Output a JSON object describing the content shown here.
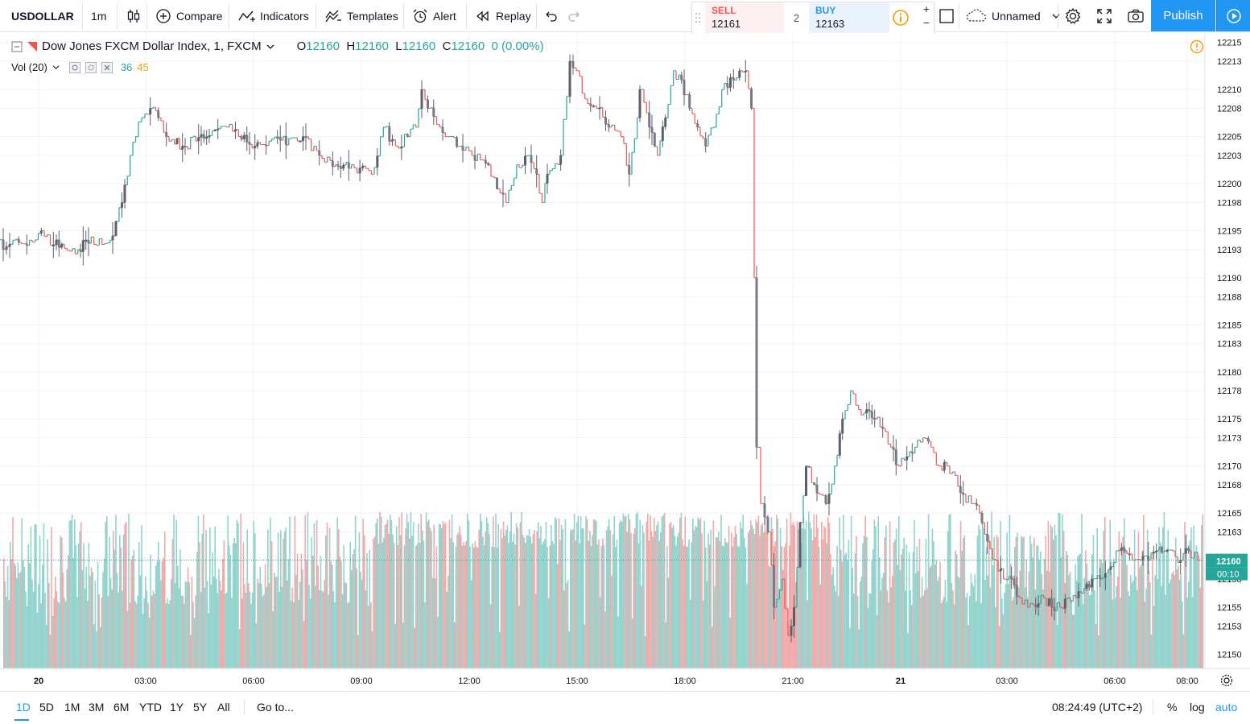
{
  "toolbar": {
    "symbol": "USDOLLAR",
    "interval": "1m",
    "compare_label": "Compare",
    "indicators_label": "Indicators",
    "templates_label": "Templates",
    "alert_label": "Alert",
    "replay_label": "Replay",
    "layout_name": "Unnamed",
    "publish_label": "Publish"
  },
  "trade": {
    "sell_label": "SELL",
    "sell_price": "12161",
    "buy_label": "BUY",
    "buy_price": "12163",
    "quantity": "2",
    "sell_color": "#ef5350",
    "buy_color": "#2196f3"
  },
  "legend": {
    "title": "Dow Jones FXCM Dollar Index, 1, FXCM",
    "o_label": "O",
    "o_value": "12160",
    "h_label": "H",
    "h_value": "12160",
    "l_label": "L",
    "l_value": "12160",
    "c_label": "C",
    "c_value": "12160",
    "change": "0 (0.00%)",
    "vol_label": "Vol (20)",
    "vol_value": "36",
    "vol_ma": "45"
  },
  "chart_data": {
    "type": "candlestick",
    "y_ticks": [
      "12215",
      "12213",
      "12210",
      "12208",
      "12205",
      "12203",
      "12200",
      "12198",
      "12195",
      "12193",
      "12190",
      "12188",
      "12185",
      "12183",
      "12180",
      "12178",
      "12175",
      "12173",
      "12170",
      "12168",
      "12165",
      "12163",
      "12160",
      "12158",
      "12155",
      "12153",
      "12150"
    ],
    "x_ticks": [
      "20",
      "03:00",
      "06:00",
      "09:00",
      "12:00",
      "15:00",
      "18:00",
      "21:00",
      "21",
      "03:00",
      "06:00",
      "08:00"
    ],
    "x_bold_ticks": [
      "20",
      "21"
    ],
    "ylim": [
      12148.5,
      12216
    ],
    "current_price": "12160",
    "countdown": "00:10",
    "path_points": [
      [
        0,
        12194
      ],
      [
        8,
        12193
      ],
      [
        20,
        12194
      ],
      [
        40,
        12194
      ],
      [
        55,
        12195
      ],
      [
        70,
        12193.5
      ],
      [
        100,
        12193
      ],
      [
        110,
        12194
      ],
      [
        140,
        12194
      ],
      [
        148,
        12196
      ],
      [
        155,
        12198
      ],
      [
        165,
        12203
      ],
      [
        172,
        12205
      ],
      [
        180,
        12207
      ],
      [
        190,
        12208
      ],
      [
        200,
        12207
      ],
      [
        210,
        12205
      ],
      [
        230,
        12204
      ],
      [
        260,
        12205
      ],
      [
        285,
        12206
      ],
      [
        300,
        12205
      ],
      [
        320,
        12204
      ],
      [
        380,
        12205
      ],
      [
        400,
        12203
      ],
      [
        420,
        12202
      ],
      [
        440,
        12202
      ],
      [
        465,
        12201
      ],
      [
        480,
        12206
      ],
      [
        495,
        12204
      ],
      [
        510,
        12205
      ],
      [
        520,
        12206
      ],
      [
        528,
        12210
      ],
      [
        535,
        12208
      ],
      [
        550,
        12206
      ],
      [
        560,
        12205
      ],
      [
        575,
        12204
      ],
      [
        590,
        12203
      ],
      [
        610,
        12202
      ],
      [
        625,
        12199
      ],
      [
        632,
        12198
      ],
      [
        645,
        12202
      ],
      [
        660,
        12203
      ],
      [
        670,
        12201
      ],
      [
        677,
        12198
      ],
      [
        683,
        12201
      ],
      [
        700,
        12203
      ],
      [
        712,
        12213
      ],
      [
        720,
        12212
      ],
      [
        730,
        12209
      ],
      [
        745,
        12208
      ],
      [
        760,
        12206
      ],
      [
        775,
        12205
      ],
      [
        785,
        12201
      ],
      [
        795,
        12207
      ],
      [
        800,
        12210
      ],
      [
        810,
        12206
      ],
      [
        820,
        12203
      ],
      [
        830,
        12207
      ],
      [
        840,
        12212
      ],
      [
        850,
        12211
      ],
      [
        860,
        12208
      ],
      [
        870,
        12206
      ],
      [
        880,
        12204
      ],
      [
        890,
        12206
      ],
      [
        900,
        12210
      ],
      [
        915,
        12211
      ],
      [
        930,
        12212
      ],
      [
        937,
        12208
      ],
      [
        940,
        12190
      ],
      [
        945,
        12172
      ],
      [
        950,
        12166
      ],
      [
        958,
        12163
      ],
      [
        965,
        12155
      ],
      [
        975,
        12158
      ],
      [
        983,
        12152
      ],
      [
        990,
        12155
      ],
      [
        998,
        12164
      ],
      [
        1005,
        12170
      ],
      [
        1015,
        12168
      ],
      [
        1022,
        12167
      ],
      [
        1030,
        12166
      ],
      [
        1040,
        12170
      ],
      [
        1050,
        12175
      ],
      [
        1060,
        12178
      ],
      [
        1070,
        12176
      ],
      [
        1080,
        12176
      ],
      [
        1090,
        12175
      ],
      [
        1100,
        12174
      ],
      [
        1110,
        12172
      ],
      [
        1120,
        12170
      ],
      [
        1130,
        12171
      ],
      [
        1140,
        12172
      ],
      [
        1150,
        12173
      ],
      [
        1160,
        12172
      ],
      [
        1170,
        12170
      ],
      [
        1180,
        12170
      ],
      [
        1190,
        12169
      ],
      [
        1200,
        12167
      ],
      [
        1210,
        12166
      ],
      [
        1220,
        12165
      ],
      [
        1230,
        12162
      ],
      [
        1240,
        12160
      ],
      [
        1250,
        12158
      ],
      [
        1260,
        12158
      ],
      [
        1270,
        12156
      ],
      [
        1280,
        12155
      ],
      [
        1290,
        12155
      ],
      [
        1300,
        12156
      ],
      [
        1310,
        12155
      ],
      [
        1320,
        12155
      ],
      [
        1330,
        12156
      ],
      [
        1340,
        12156
      ],
      [
        1350,
        12157
      ],
      [
        1360,
        12158
      ],
      [
        1370,
        12158
      ],
      [
        1380,
        12159
      ],
      [
        1390,
        12161
      ],
      [
        1400,
        12161
      ],
      [
        1410,
        12160
      ],
      [
        1420,
        12160
      ],
      [
        1430,
        12160
      ],
      [
        1440,
        12161
      ],
      [
        1450,
        12161
      ],
      [
        1460,
        12161
      ],
      [
        1470,
        12160
      ],
      [
        1480,
        12161
      ],
      [
        1492,
        12160
      ]
    ]
  },
  "colors": {
    "up": "#26a69a",
    "down": "#ef5350",
    "vol_up": "#80cbc4",
    "vol_down": "#ef9a9a",
    "accent": "#2196f3"
  },
  "bottom": {
    "ranges": [
      "1D",
      "5D",
      "1M",
      "3M",
      "6M",
      "YTD",
      "1Y",
      "5Y",
      "All"
    ],
    "active_range": "1D",
    "goto_label": "Go to...",
    "clock": "08:24:49 (UTC+2)",
    "percent_label": "%",
    "log_label": "log",
    "auto_label": "auto"
  }
}
